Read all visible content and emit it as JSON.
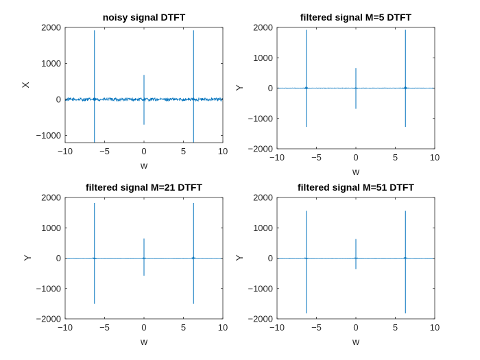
{
  "figure": {
    "background": "#ffffff",
    "line_color": "#0072BD"
  },
  "chart_data": [
    {
      "type": "line",
      "title": "noisy signal DTFT",
      "xlabel": "w",
      "ylabel": "X",
      "xlim": [
        -10,
        10
      ],
      "ylim": [
        -1200,
        2000
      ],
      "xticks": [
        -10,
        -5,
        0,
        5,
        10
      ],
      "yticks": [
        -1000,
        0,
        1000,
        2000
      ],
      "baseline_noise": 45,
      "spikes": [
        {
          "x": -6.283,
          "max": 1920,
          "min": -1200
        },
        {
          "x": 0,
          "max": 680,
          "min": -700
        },
        {
          "x": 6.283,
          "max": 1920,
          "min": -1200
        }
      ],
      "grid": false
    },
    {
      "type": "line",
      "title": "filtered signal M=5 DTFT",
      "xlabel": "w",
      "ylabel": "Y",
      "xlim": [
        -10,
        10
      ],
      "ylim": [
        -2000,
        2000
      ],
      "xticks": [
        -10,
        -5,
        0,
        5,
        10
      ],
      "yticks": [
        -2000,
        -1000,
        0,
        1000,
        2000
      ],
      "baseline_noise": 8,
      "spikes": [
        {
          "x": -6.283,
          "max": 1920,
          "min": -1280
        },
        {
          "x": 0,
          "max": 660,
          "min": -680
        },
        {
          "x": 6.283,
          "max": 1920,
          "min": -1280
        }
      ],
      "grid": false
    },
    {
      "type": "line",
      "title": "filtered signal M=21 DTFT",
      "xlabel": "w",
      "ylabel": "Y",
      "xlim": [
        -10,
        10
      ],
      "ylim": [
        -2000,
        2000
      ],
      "xticks": [
        -10,
        -5,
        0,
        5,
        10
      ],
      "yticks": [
        -2000,
        -1000,
        0,
        1000,
        2000
      ],
      "baseline_noise": 3,
      "spikes": [
        {
          "x": -6.283,
          "max": 1820,
          "min": -1500
        },
        {
          "x": 0,
          "max": 650,
          "min": -580
        },
        {
          "x": 6.283,
          "max": 1820,
          "min": -1500
        }
      ],
      "grid": false
    },
    {
      "type": "line",
      "title": "filtered signal M=51 DTFT",
      "xlabel": "w",
      "ylabel": "Y",
      "xlim": [
        -10,
        10
      ],
      "ylim": [
        -2000,
        2000
      ],
      "xticks": [
        -10,
        -5,
        0,
        5,
        10
      ],
      "yticks": [
        -2000,
        -1000,
        0,
        1000,
        2000
      ],
      "baseline_noise": 2,
      "spikes": [
        {
          "x": -6.283,
          "max": 1560,
          "min": -1820
        },
        {
          "x": 0,
          "max": 630,
          "min": -360
        },
        {
          "x": 6.283,
          "max": 1560,
          "min": -1820
        }
      ],
      "grid": false
    }
  ]
}
